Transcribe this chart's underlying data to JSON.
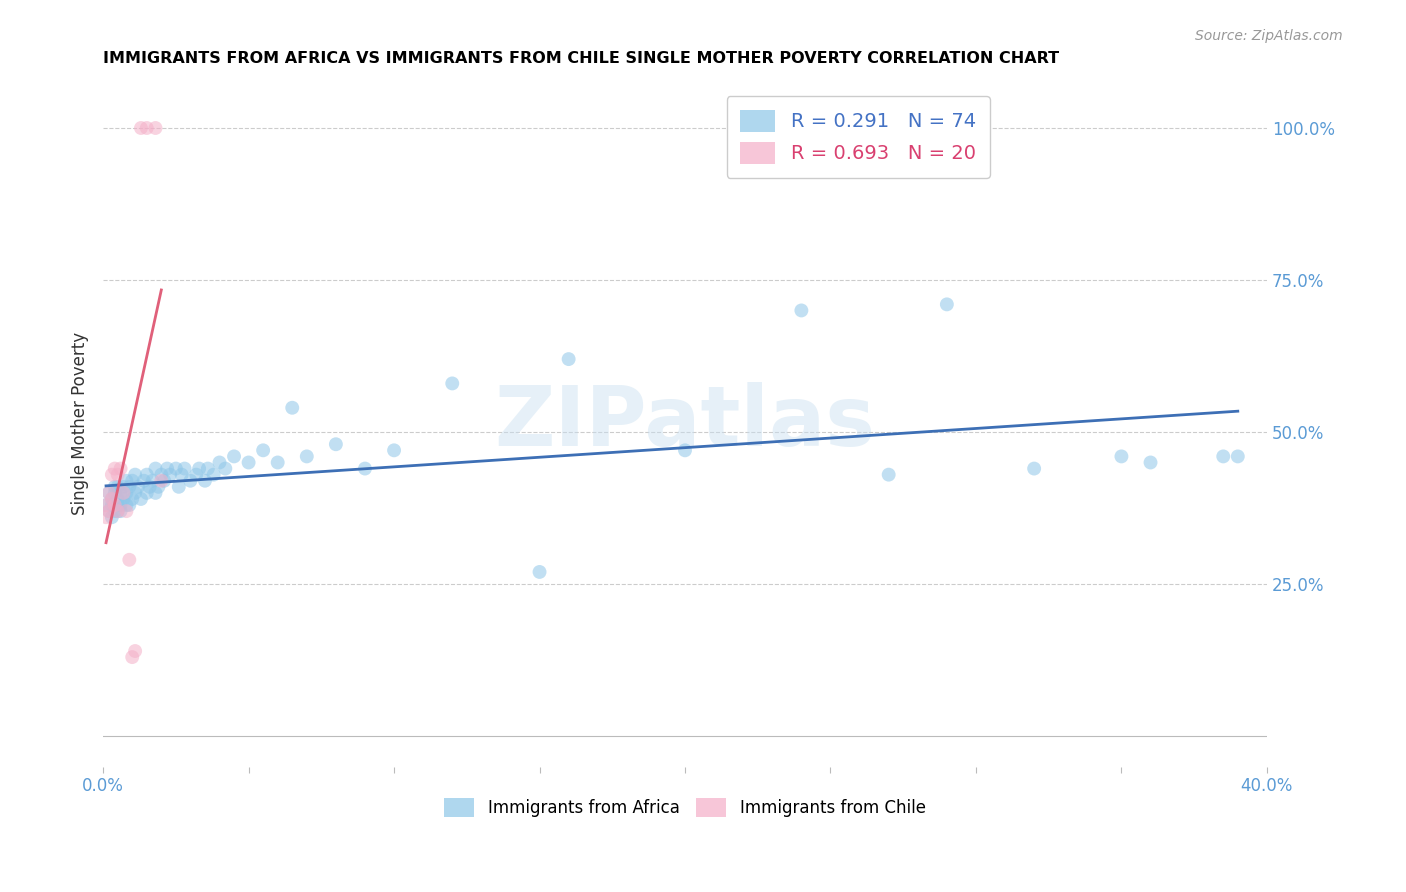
{
  "title": "IMMIGRANTS FROM AFRICA VS IMMIGRANTS FROM CHILE SINGLE MOTHER POVERTY CORRELATION CHART",
  "source": "Source: ZipAtlas.com",
  "ylabel": "Single Mother Poverty",
  "right_yticks": [
    0.25,
    0.5,
    0.75,
    1.0
  ],
  "right_yticklabels": [
    "25.0%",
    "50.0%",
    "75.0%",
    "100.0%"
  ],
  "legend_top": [
    {
      "label": "R = 0.291   N = 74",
      "color": "#8ec6e8"
    },
    {
      "label": "R = 0.693   N = 20",
      "color": "#f4afc8"
    }
  ],
  "legend_bottom": [
    "Immigrants from Africa",
    "Immigrants from Chile"
  ],
  "africa_color": "#8ec6e8",
  "chile_color": "#f4afc8",
  "africa_line_color": "#3d6fb5",
  "chile_line_color": "#e0607a",
  "xlim": [
    0.0,
    0.4
  ],
  "ylim": [
    -0.05,
    1.08
  ],
  "watermark": "ZIPatlas",
  "africa_x": [
    0.001,
    0.002,
    0.002,
    0.003,
    0.003,
    0.003,
    0.004,
    0.004,
    0.004,
    0.005,
    0.005,
    0.005,
    0.005,
    0.006,
    0.006,
    0.006,
    0.007,
    0.007,
    0.008,
    0.008,
    0.008,
    0.009,
    0.009,
    0.01,
    0.01,
    0.011,
    0.011,
    0.012,
    0.013,
    0.014,
    0.015,
    0.015,
    0.016,
    0.017,
    0.018,
    0.018,
    0.019,
    0.02,
    0.021,
    0.022,
    0.023,
    0.025,
    0.026,
    0.027,
    0.028,
    0.03,
    0.032,
    0.033,
    0.035,
    0.036,
    0.038,
    0.04,
    0.042,
    0.045,
    0.05,
    0.055,
    0.06,
    0.065,
    0.07,
    0.08,
    0.09,
    0.1,
    0.12,
    0.15,
    0.16,
    0.2,
    0.24,
    0.27,
    0.29,
    0.32,
    0.35,
    0.36,
    0.385,
    0.39
  ],
  "africa_y": [
    0.38,
    0.37,
    0.4,
    0.38,
    0.36,
    0.39,
    0.37,
    0.4,
    0.41,
    0.38,
    0.37,
    0.39,
    0.41,
    0.38,
    0.4,
    0.37,
    0.39,
    0.41,
    0.38,
    0.4,
    0.42,
    0.38,
    0.41,
    0.39,
    0.42,
    0.4,
    0.43,
    0.41,
    0.39,
    0.42,
    0.4,
    0.43,
    0.41,
    0.42,
    0.4,
    0.44,
    0.41,
    0.43,
    0.42,
    0.44,
    0.43,
    0.44,
    0.41,
    0.43,
    0.44,
    0.42,
    0.43,
    0.44,
    0.42,
    0.44,
    0.43,
    0.45,
    0.44,
    0.46,
    0.45,
    0.47,
    0.45,
    0.54,
    0.46,
    0.48,
    0.44,
    0.47,
    0.58,
    0.27,
    0.62,
    0.47,
    0.7,
    0.43,
    0.71,
    0.44,
    0.46,
    0.45,
    0.46,
    0.46
  ],
  "chile_x": [
    0.001,
    0.001,
    0.002,
    0.002,
    0.003,
    0.003,
    0.004,
    0.004,
    0.005,
    0.005,
    0.006,
    0.007,
    0.008,
    0.009,
    0.01,
    0.011,
    0.013,
    0.015,
    0.018,
    0.02
  ],
  "chile_y": [
    0.36,
    0.38,
    0.37,
    0.4,
    0.39,
    0.43,
    0.38,
    0.44,
    0.37,
    0.43,
    0.44,
    0.4,
    0.37,
    0.29,
    0.13,
    0.14,
    1.0,
    1.0,
    1.0,
    0.42
  ]
}
